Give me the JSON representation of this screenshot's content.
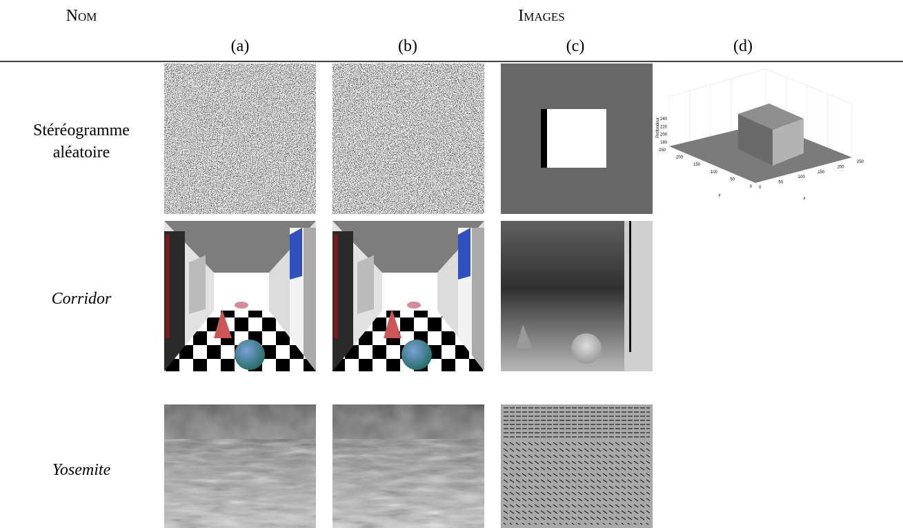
{
  "header": {
    "name": "Nom",
    "images": "Images",
    "columns": [
      "(a)",
      "(b)",
      "(c)",
      "(d)"
    ]
  },
  "rows": [
    {
      "name": [
        "Stéréogramme",
        "aléatoire"
      ]
    },
    {
      "name": [
        "Corridor"
      ]
    },
    {
      "name": [
        "Yosemite"
      ]
    }
  ],
  "plot": {
    "zlabel": "Profondeur",
    "ylabel": "y",
    "xlabel": "x",
    "zticks": [
      180,
      200,
      220,
      240
    ],
    "yticks": [
      0,
      50,
      100,
      150,
      200,
      250
    ],
    "xticks": [
      0,
      50,
      100,
      150,
      200,
      250
    ]
  }
}
